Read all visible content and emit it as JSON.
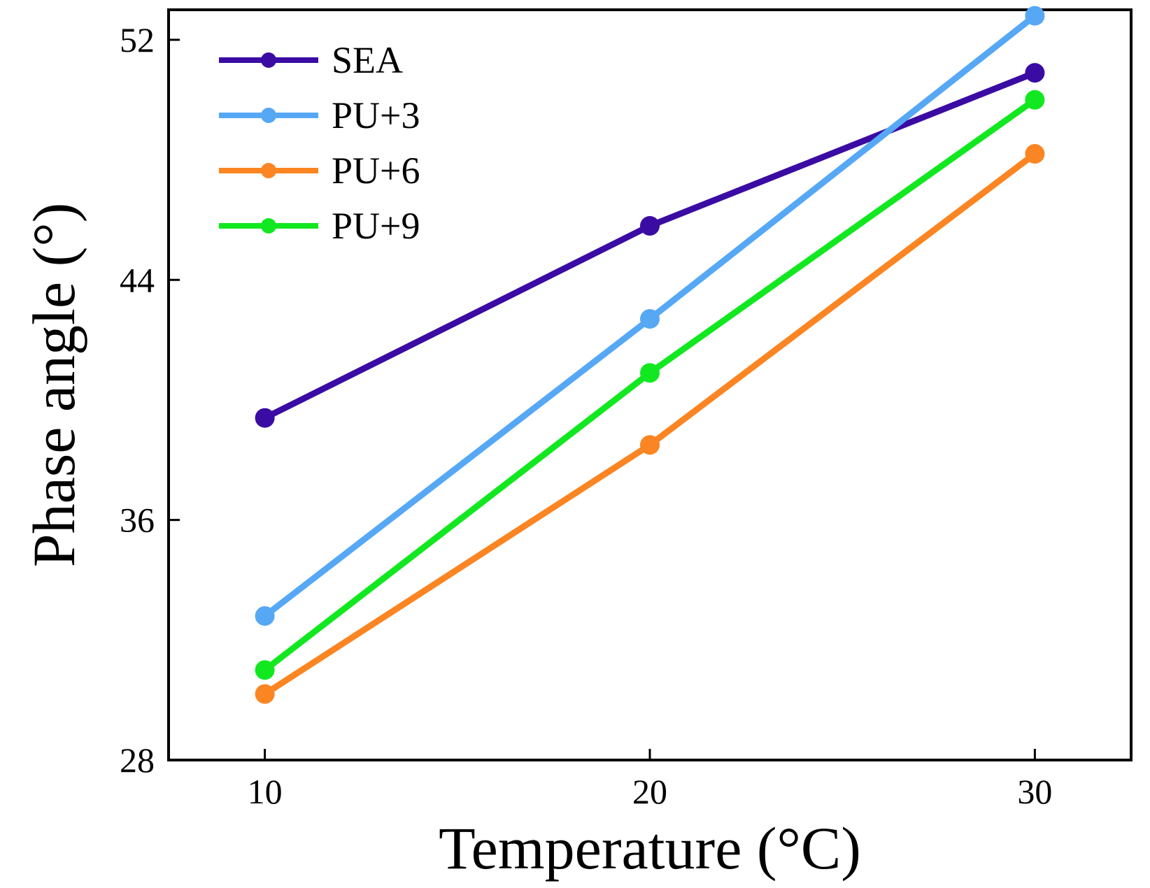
{
  "chart_data": {
    "type": "line",
    "xlabel": "Temperature (°C)",
    "ylabel": "Phase angle (°)",
    "x": [
      10,
      20,
      30
    ],
    "xticks": [
      "10",
      "20",
      "30"
    ],
    "xlim": [
      7.5,
      32.5
    ],
    "yticks": [
      "28",
      "36",
      "44",
      "52"
    ],
    "ylim": [
      28,
      53
    ],
    "legend_position": "top-left",
    "series": [
      {
        "name": "SEA",
        "color": "#3a0ca3",
        "values": [
          39.4,
          45.8,
          50.9
        ]
      },
      {
        "name": "PU+3",
        "color": "#56a8f5",
        "values": [
          32.8,
          42.7,
          52.8
        ]
      },
      {
        "name": "PU+6",
        "color": "#fb8522",
        "values": [
          30.2,
          38.5,
          48.2
        ]
      },
      {
        "name": "PU+9",
        "color": "#12e820",
        "values": [
          31.0,
          40.9,
          50.0
        ]
      }
    ]
  }
}
